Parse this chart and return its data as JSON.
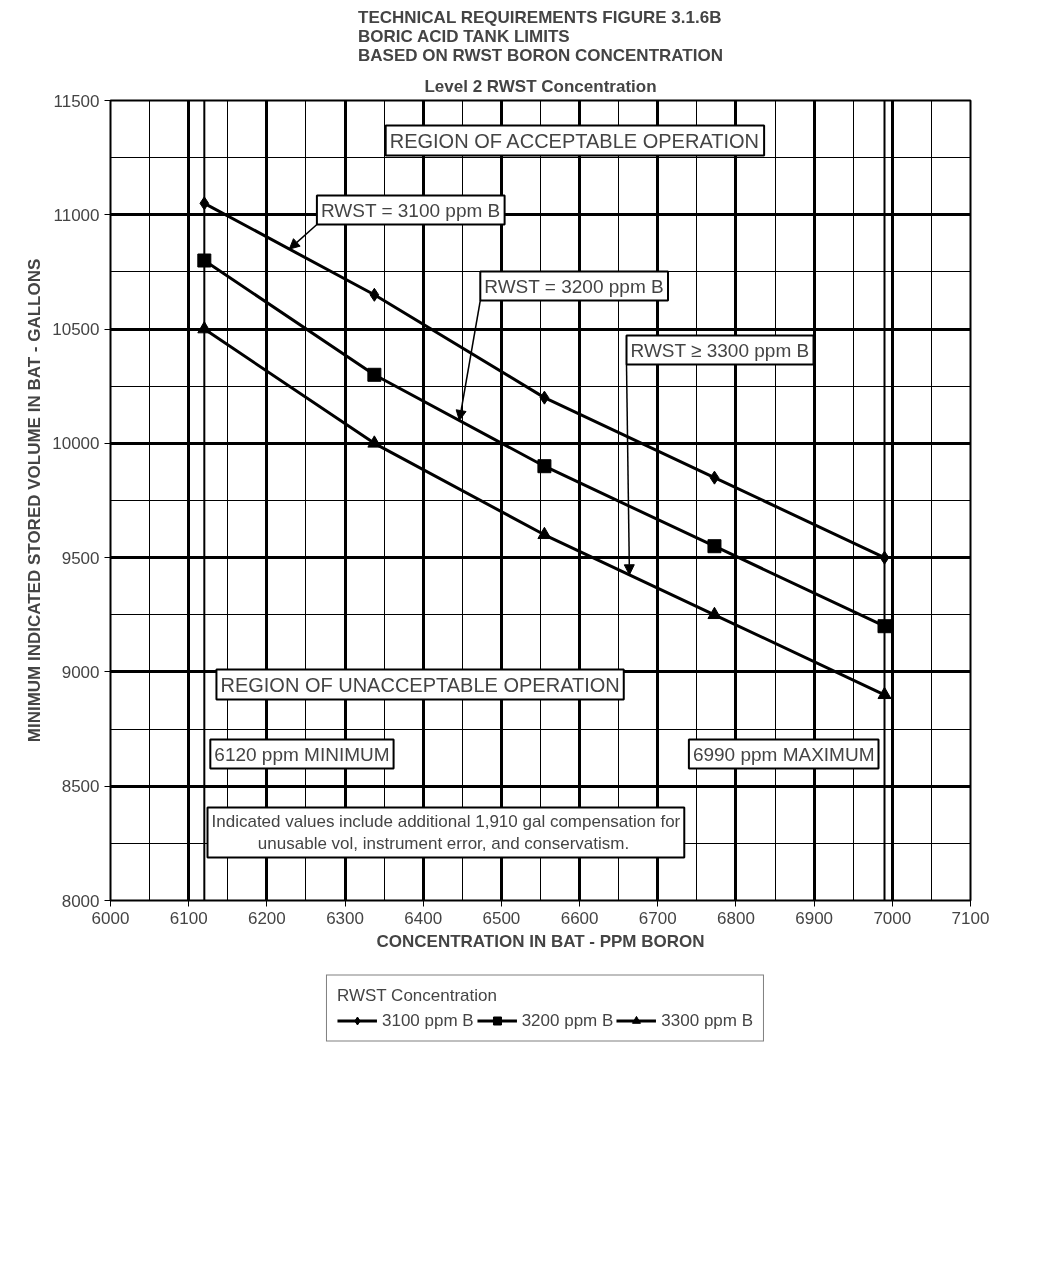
{
  "chart_data": {
    "type": "line",
    "title": "TECHNICAL REQUIREMENTS FIGURE 3.1.6B\nBORIC ACID TANK LIMITS\nBASED ON RWST BORON CONCENTRATION",
    "subtitle": "Level 2 RWST Concentration",
    "xlabel": "CONCENTRATION IN BAT - PPM BORON",
    "ylabel": "MINIMUM INDICATED STORED VOLUME IN BAT - GALLONS",
    "legend_title": "RWST Concentration",
    "x": [
      6120,
      6337.5,
      6555,
      6772.5,
      6990
    ],
    "series": [
      {
        "name": "3100 ppm B",
        "color": "#000000",
        "marker": "diamond",
        "values": [
          11050,
          10650,
          10200,
          9850,
          9500
        ]
      },
      {
        "name": "3200 ppm B",
        "color": "#000000",
        "marker": "square",
        "values": [
          10800,
          10300,
          9900,
          9550,
          9200
        ]
      },
      {
        "name": "3300 ppm B",
        "color": "#000000",
        "marker": "triangle",
        "values": [
          10500,
          10000,
          9600,
          9250,
          8900
        ]
      }
    ],
    "xlim": [
      6000,
      7100
    ],
    "ylim": [
      8000,
      11500
    ],
    "xticks": [
      6000,
      6100,
      6200,
      6300,
      6400,
      6500,
      6600,
      6700,
      6800,
      6900,
      7000,
      7100
    ],
    "yticks": [
      8000,
      8500,
      9000,
      9500,
      10000,
      10500,
      11000,
      11500
    ],
    "grid": true,
    "legend": "bottom",
    "line_style": "solid",
    "ref_lines": [
      {
        "axis": "x",
        "value": 6120,
        "label": "6120 ppm MINIMUM"
      },
      {
        "axis": "x",
        "value": 6990,
        "label": "6990 ppm MAXIMUM"
      }
    ],
    "annotations": [
      "REGION OF ACCEPTABLE OPERATION",
      {
        "text": "RWST = 3100 ppm B",
        "x": 6228.75,
        "y": 10850
      },
      {
        "text": "RWST = 3200 ppm B",
        "x": 6446.25,
        "y": 10100
      },
      {
        "text": "RWST ≥ 3300 ppm B",
        "x": 6663.75,
        "y": 9425
      },
      "REGION OF UNACCEPTABLE OPERATION",
      "Indicated values include additional 1,910 gal compensation for unusable vol, instrument error,  and conservatism."
    ]
  }
}
